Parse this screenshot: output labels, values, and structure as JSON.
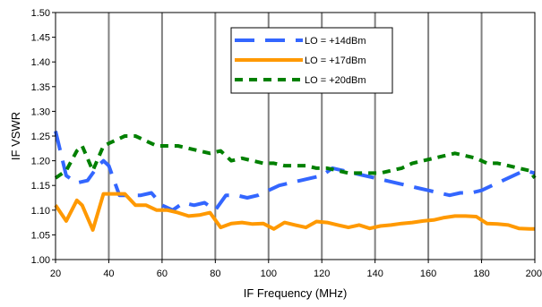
{
  "chart_data": {
    "type": "line",
    "xlabel": "IF Frequency (MHz)",
    "ylabel": "IF VSWR",
    "xlim": [
      20,
      200
    ],
    "ylim": [
      1.0,
      1.5
    ],
    "x_ticks": [
      20,
      40,
      60,
      80,
      100,
      120,
      140,
      160,
      180,
      200
    ],
    "y_ticks": [
      1.0,
      1.05,
      1.1,
      1.15,
      1.2,
      1.25,
      1.3,
      1.35,
      1.4,
      1.45,
      1.5
    ],
    "x_tick_labels": [
      "20",
      "40",
      "60",
      "80",
      "100",
      "120",
      "140",
      "160",
      "180",
      "200"
    ],
    "y_tick_labels": [
      "1.00",
      "1.05",
      "1.10",
      "1.15",
      "1.20",
      "1.25",
      "1.30",
      "1.35",
      "1.40",
      "1.45",
      "1.50"
    ],
    "grid": "vertical",
    "legend_position": "top-right",
    "series": [
      {
        "name": "LO = +14dBm",
        "color": "#3366ff",
        "dash": "long-dash",
        "x": [
          20,
          24,
          28,
          32,
          36,
          38,
          40,
          44,
          48,
          52,
          56,
          60,
          64,
          68,
          72,
          76,
          80,
          84,
          88,
          92,
          96,
          100,
          104,
          108,
          112,
          116,
          120,
          124,
          128,
          132,
          136,
          140,
          144,
          148,
          152,
          156,
          160,
          164,
          168,
          172,
          176,
          180,
          184,
          188,
          192,
          196,
          200
        ],
        "y": [
          1.26,
          1.17,
          1.155,
          1.16,
          1.19,
          1.2,
          1.19,
          1.13,
          1.13,
          1.13,
          1.135,
          1.11,
          1.1,
          1.115,
          1.11,
          1.115,
          1.1,
          1.13,
          1.13,
          1.125,
          1.13,
          1.14,
          1.15,
          1.155,
          1.16,
          1.165,
          1.17,
          1.185,
          1.18,
          1.175,
          1.17,
          1.165,
          1.16,
          1.155,
          1.15,
          1.145,
          1.14,
          1.135,
          1.13,
          1.135,
          1.135,
          1.14,
          1.15,
          1.16,
          1.17,
          1.18,
          1.175
        ]
      },
      {
        "name": "LO = +17dBm",
        "color": "#ff9900",
        "dash": "solid",
        "x": [
          20,
          24,
          28,
          30,
          34,
          38,
          42,
          46,
          50,
          54,
          58,
          62,
          66,
          70,
          74,
          78,
          82,
          86,
          90,
          94,
          98,
          102,
          106,
          110,
          114,
          118,
          122,
          126,
          130,
          134,
          138,
          142,
          146,
          150,
          154,
          158,
          162,
          166,
          170,
          174,
          178,
          182,
          186,
          190,
          194,
          198,
          200
        ],
        "y": [
          1.11,
          1.078,
          1.12,
          1.11,
          1.06,
          1.133,
          1.133,
          1.133,
          1.11,
          1.11,
          1.1,
          1.1,
          1.095,
          1.088,
          1.09,
          1.095,
          1.065,
          1.073,
          1.075,
          1.072,
          1.073,
          1.062,
          1.075,
          1.07,
          1.065,
          1.077,
          1.075,
          1.07,
          1.065,
          1.07,
          1.063,
          1.068,
          1.07,
          1.073,
          1.075,
          1.078,
          1.08,
          1.085,
          1.088,
          1.088,
          1.087,
          1.073,
          1.072,
          1.07,
          1.063,
          1.062,
          1.062
        ]
      },
      {
        "name": "LO = +20dBm",
        "color": "#008000",
        "dash": "short-dash",
        "x": [
          20,
          24,
          28,
          30,
          34,
          38,
          42,
          46,
          50,
          54,
          58,
          62,
          66,
          70,
          74,
          78,
          82,
          86,
          90,
          94,
          98,
          102,
          106,
          110,
          114,
          118,
          122,
          126,
          130,
          134,
          138,
          142,
          146,
          150,
          154,
          158,
          162,
          166,
          170,
          174,
          178,
          182,
          186,
          190,
          194,
          198,
          200
        ],
        "y": [
          1.165,
          1.18,
          1.22,
          1.23,
          1.18,
          1.23,
          1.24,
          1.25,
          1.25,
          1.24,
          1.23,
          1.23,
          1.23,
          1.225,
          1.22,
          1.215,
          1.22,
          1.2,
          1.205,
          1.2,
          1.195,
          1.195,
          1.19,
          1.19,
          1.19,
          1.185,
          1.185,
          1.18,
          1.175,
          1.175,
          1.175,
          1.175,
          1.18,
          1.185,
          1.195,
          1.2,
          1.205,
          1.21,
          1.215,
          1.21,
          1.205,
          1.195,
          1.195,
          1.19,
          1.185,
          1.18,
          1.165
        ]
      }
    ]
  }
}
